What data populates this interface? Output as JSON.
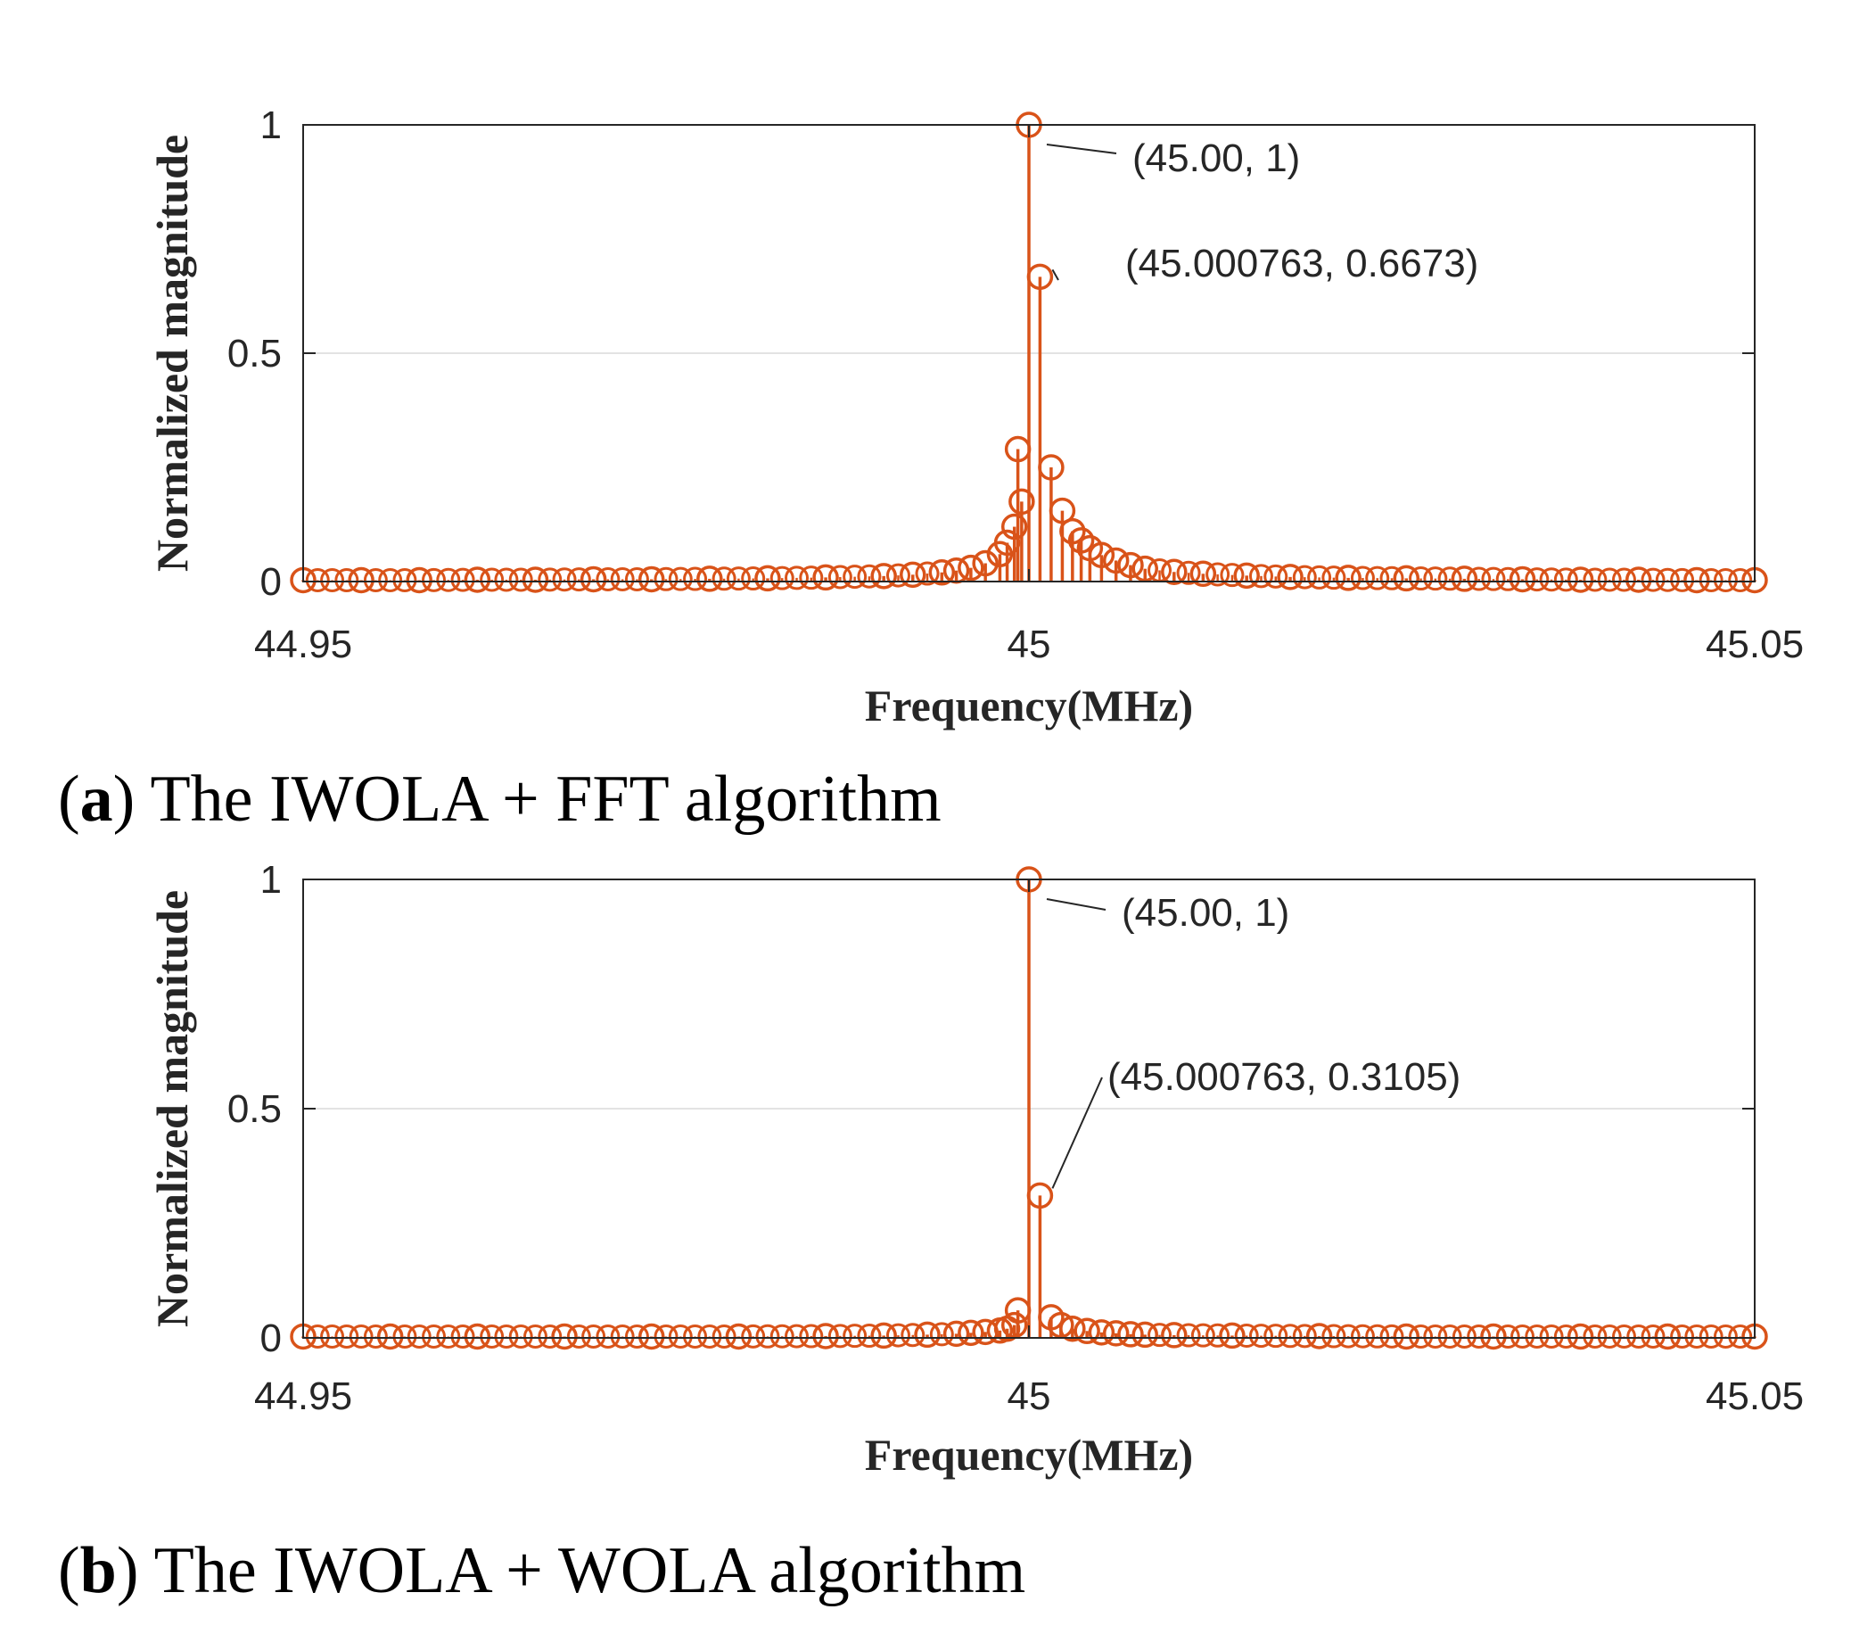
{
  "chart_data": [
    {
      "type": "stem",
      "caption_letter": "a",
      "caption_text": "The IWOLA + FFT algorithm",
      "xlabel": "Frequency(MHz)",
      "ylabel": "Normalized magnitude",
      "xlim": [
        44.95,
        45.05
      ],
      "ylim": [
        0,
        1
      ],
      "xticks": [
        "44.95",
        "45",
        "45.05"
      ],
      "yticks": [
        "0",
        "0.5",
        "1"
      ],
      "grid": "y",
      "color": "#d95319",
      "points": [
        [
          44.95,
          0.003
        ],
        [
          44.954,
          0.003
        ],
        [
          44.958,
          0.003
        ],
        [
          44.962,
          0.004
        ],
        [
          44.966,
          0.004
        ],
        [
          44.97,
          0.005
        ],
        [
          44.974,
          0.005
        ],
        [
          44.978,
          0.006
        ],
        [
          44.982,
          0.007
        ],
        [
          44.986,
          0.009
        ],
        [
          44.99,
          0.012
        ],
        [
          44.992,
          0.015
        ],
        [
          44.994,
          0.02
        ],
        [
          44.995,
          0.024
        ],
        [
          44.996,
          0.03
        ],
        [
          44.997,
          0.04
        ],
        [
          44.998,
          0.06
        ],
        [
          44.9985,
          0.085
        ],
        [
          44.999,
          0.12
        ],
        [
          44.9995,
          0.175
        ],
        [
          44.99924,
          0.29
        ],
        [
          45.0,
          1.0
        ],
        [
          45.000763,
          0.6673
        ],
        [
          45.00153,
          0.25
        ],
        [
          45.0023,
          0.155
        ],
        [
          45.003,
          0.11
        ],
        [
          45.0036,
          0.09
        ],
        [
          45.0042,
          0.073
        ],
        [
          45.005,
          0.058
        ],
        [
          45.006,
          0.046
        ],
        [
          45.007,
          0.036
        ],
        [
          45.008,
          0.028
        ],
        [
          45.01,
          0.021
        ],
        [
          45.012,
          0.017
        ],
        [
          45.015,
          0.013
        ],
        [
          45.018,
          0.01
        ],
        [
          45.022,
          0.008
        ],
        [
          45.026,
          0.007
        ],
        [
          45.03,
          0.006
        ],
        [
          45.034,
          0.005
        ],
        [
          45.038,
          0.004
        ],
        [
          45.042,
          0.004
        ],
        [
          45.046,
          0.003
        ],
        [
          45.05,
          0.003
        ]
      ],
      "annotations": [
        {
          "text": "(45.00, 1)",
          "x": 45.0,
          "y": 1.0
        },
        {
          "text": "(45.000763, 0.6673)",
          "x": 45.000763,
          "y": 0.6673
        }
      ]
    },
    {
      "type": "stem",
      "caption_letter": "b",
      "caption_text": "The IWOLA + WOLA algorithm",
      "xlabel": "Frequency(MHz)",
      "ylabel": "Normalized magnitude",
      "xlim": [
        44.95,
        45.05
      ],
      "ylim": [
        0,
        1
      ],
      "xticks": [
        "44.95",
        "45",
        "45.05"
      ],
      "yticks": [
        "0",
        "0.5",
        "1"
      ],
      "grid": "y",
      "color": "#d95319",
      "points": [
        [
          44.95,
          0.003
        ],
        [
          44.956,
          0.003
        ],
        [
          44.962,
          0.003
        ],
        [
          44.968,
          0.003
        ],
        [
          44.974,
          0.003
        ],
        [
          44.98,
          0.003
        ],
        [
          44.986,
          0.004
        ],
        [
          44.99,
          0.005
        ],
        [
          44.993,
          0.007
        ],
        [
          44.995,
          0.009
        ],
        [
          44.996,
          0.011
        ],
        [
          44.997,
          0.013
        ],
        [
          44.998,
          0.016
        ],
        [
          44.9985,
          0.02
        ],
        [
          44.999,
          0.028
        ],
        [
          44.99924,
          0.06
        ],
        [
          45.0,
          1.0
        ],
        [
          45.000763,
          0.3105
        ],
        [
          45.00153,
          0.045
        ],
        [
          45.0022,
          0.028
        ],
        [
          45.003,
          0.02
        ],
        [
          45.004,
          0.015
        ],
        [
          45.005,
          0.012
        ],
        [
          45.006,
          0.01
        ],
        [
          45.007,
          0.008
        ],
        [
          45.008,
          0.007
        ],
        [
          45.01,
          0.006
        ],
        [
          45.014,
          0.005
        ],
        [
          45.02,
          0.004
        ],
        [
          45.026,
          0.003
        ],
        [
          45.032,
          0.003
        ],
        [
          45.038,
          0.003
        ],
        [
          45.044,
          0.003
        ],
        [
          45.05,
          0.003
        ]
      ],
      "annotations": [
        {
          "text": "(45.00, 1)",
          "x": 45.0,
          "y": 1.0
        },
        {
          "text": "(45.000763, 0.3105)",
          "x": 45.000763,
          "y": 0.3105
        }
      ]
    }
  ]
}
